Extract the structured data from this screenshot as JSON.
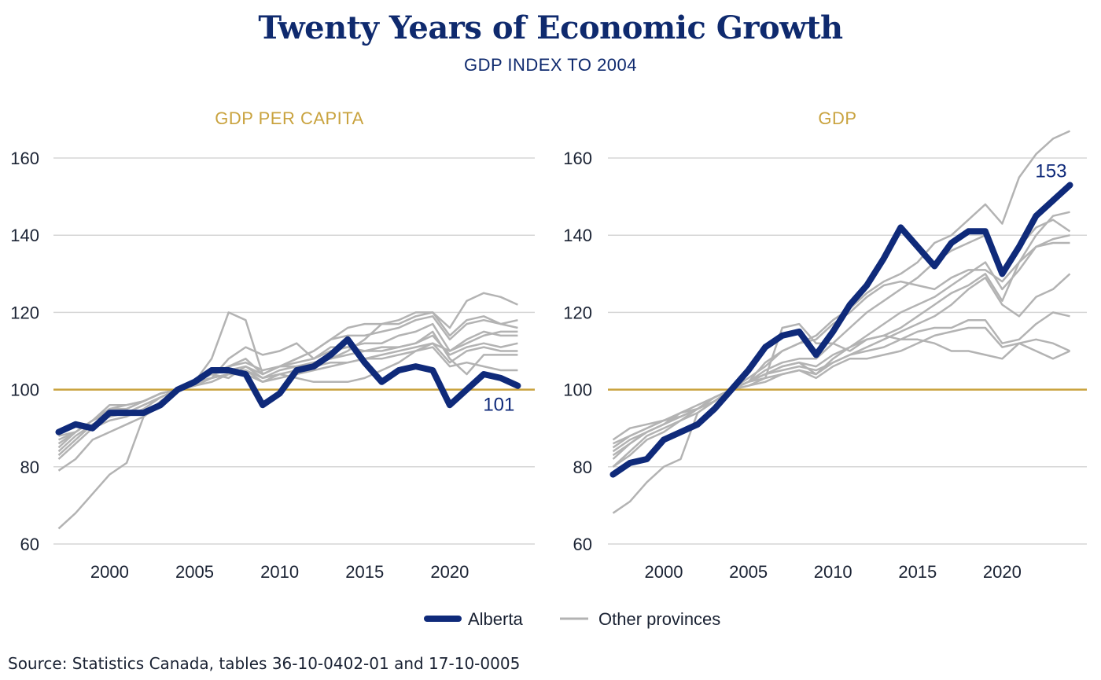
{
  "header": {
    "title": "Twenty Years of Economic Growth",
    "subtitle": "GDP INDEX TO 2004"
  },
  "legend": {
    "alberta_label": "Alberta",
    "others_label": "Other provinces"
  },
  "source": "Source: Statistics Canada, tables 36-10-0402-01 and 17-10-0005",
  "colors": {
    "alberta": "#0f2a7a",
    "others": "#b3b3b3",
    "baseline": "#c9a33f",
    "panel_title": "#c9a33f",
    "grid": "#d6d6d6",
    "text": "#1a2233"
  },
  "chart_data": [
    {
      "type": "line",
      "title": "GDP PER CAPITA",
      "x": [
        1997,
        1998,
        1999,
        2000,
        2001,
        2002,
        2003,
        2004,
        2005,
        2006,
        2007,
        2008,
        2009,
        2010,
        2011,
        2012,
        2013,
        2014,
        2015,
        2016,
        2017,
        2018,
        2019,
        2020,
        2021,
        2022,
        2023,
        2024
      ],
      "ylim": [
        60,
        160
      ],
      "yticks": [
        60,
        80,
        100,
        120,
        140,
        160
      ],
      "xticks": [
        2000,
        2005,
        2010,
        2015,
        2020
      ],
      "xlim": [
        1996.7,
        2025
      ],
      "baseline": 100,
      "highlight": {
        "name": "Alberta",
        "values": [
          89,
          91,
          90,
          94,
          94,
          94,
          96,
          100,
          102,
          105,
          105,
          104,
          96,
          99,
          105,
          106,
          109,
          113,
          107,
          102,
          105,
          106,
          105,
          96,
          100,
          104,
          103,
          101
        ],
        "end_label": "101"
      },
      "others": [
        {
          "values": [
            64,
            68,
            73,
            78,
            81,
            93,
            97,
            100,
            102,
            104,
            103,
            106,
            103,
            104,
            103,
            102,
            102,
            102,
            103,
            105,
            107,
            110,
            112,
            110,
            112,
            114,
            115,
            115
          ]
        },
        {
          "values": [
            79,
            82,
            87,
            89,
            91,
            93,
            96,
            100,
            102,
            108,
            120,
            118,
            104,
            106,
            106,
            107,
            108,
            110,
            113,
            117,
            118,
            120,
            120,
            116,
            123,
            125,
            124,
            122
          ]
        },
        {
          "values": [
            82,
            86,
            90,
            92,
            93,
            95,
            98,
            100,
            102,
            104,
            106,
            107,
            105,
            106,
            108,
            110,
            113,
            116,
            117,
            117,
            117,
            119,
            120,
            114,
            118,
            119,
            117,
            118
          ]
        },
        {
          "values": [
            83,
            87,
            91,
            93,
            94,
            96,
            98,
            100,
            102,
            104,
            106,
            108,
            104,
            106,
            108,
            110,
            113,
            114,
            114,
            115,
            116,
            118,
            119,
            113,
            117,
            118,
            117,
            116
          ]
        },
        {
          "values": [
            84,
            88,
            91,
            93,
            94,
            96,
            98,
            100,
            102,
            104,
            105,
            106,
            104,
            106,
            107,
            108,
            110,
            111,
            112,
            112,
            114,
            115,
            117,
            110,
            113,
            115,
            114,
            114
          ]
        },
        {
          "values": [
            85,
            89,
            92,
            94,
            95,
            97,
            99,
            100,
            102,
            103,
            104,
            105,
            103,
            105,
            106,
            107,
            108,
            109,
            110,
            111,
            111,
            112,
            114,
            109,
            111,
            112,
            111,
            112
          ]
        },
        {
          "values": [
            86,
            89,
            92,
            95,
            95,
            97,
            99,
            100,
            101,
            103,
            104,
            105,
            102,
            104,
            105,
            106,
            107,
            107,
            108,
            109,
            110,
            111,
            112,
            107,
            110,
            111,
            110,
            110
          ]
        },
        {
          "values": [
            87,
            89,
            92,
            95,
            96,
            97,
            99,
            100,
            101,
            102,
            104,
            104,
            102,
            103,
            104,
            105,
            106,
            107,
            108,
            108,
            109,
            110,
            111,
            106,
            107,
            106,
            105,
            105
          ]
        },
        {
          "values": [
            88,
            89,
            92,
            96,
            96,
            97,
            99,
            100,
            101,
            103,
            108,
            111,
            109,
            110,
            112,
            108,
            111,
            111,
            110,
            110,
            111,
            112,
            115,
            108,
            104,
            109,
            109,
            109
          ]
        }
      ]
    },
    {
      "type": "line",
      "title": "GDP",
      "x": [
        1997,
        1998,
        1999,
        2000,
        2001,
        2002,
        2003,
        2004,
        2005,
        2006,
        2007,
        2008,
        2009,
        2010,
        2011,
        2012,
        2013,
        2014,
        2015,
        2016,
        2017,
        2018,
        2019,
        2020,
        2021,
        2022,
        2023,
        2024
      ],
      "ylim": [
        60,
        160
      ],
      "yticks": [
        60,
        80,
        100,
        120,
        140,
        160
      ],
      "xticks": [
        2000,
        2005,
        2010,
        2015,
        2020
      ],
      "xlim": [
        1996.7,
        2025
      ],
      "baseline": 100,
      "highlight": {
        "name": "Alberta",
        "values": [
          78,
          81,
          82,
          87,
          89,
          91,
          95,
          100,
          105,
          111,
          114,
          115,
          109,
          115,
          122,
          127,
          134,
          142,
          137,
          132,
          138,
          141,
          141,
          130,
          137,
          145,
          149,
          153
        ],
        "end_label": "153"
      },
      "others": [
        {
          "values": [
            68,
            71,
            76,
            80,
            82,
            94,
            97,
            100,
            102,
            107,
            110,
            112,
            114,
            118,
            121,
            125,
            128,
            130,
            133,
            138,
            140,
            144,
            148,
            143,
            155,
            161,
            165,
            167
          ]
        },
        {
          "values": [
            80,
            84,
            88,
            90,
            92,
            95,
            98,
            100,
            103,
            106,
            110,
            112,
            113,
            117,
            120,
            124,
            127,
            128,
            127,
            126,
            129,
            131,
            131,
            128,
            133,
            140,
            145,
            146
          ]
        },
        {
          "values": [
            82,
            86,
            89,
            91,
            93,
            95,
            97,
            100,
            102,
            105,
            107,
            108,
            108,
            112,
            116,
            120,
            123,
            126,
            129,
            133,
            136,
            138,
            140,
            130,
            137,
            142,
            144,
            141
          ]
        },
        {
          "values": [
            83,
            86,
            89,
            91,
            93,
            95,
            98,
            100,
            102,
            104,
            106,
            107,
            104,
            108,
            111,
            114,
            117,
            120,
            122,
            124,
            127,
            130,
            133,
            126,
            131,
            137,
            139,
            140
          ]
        },
        {
          "values": [
            80,
            83,
            87,
            89,
            92,
            94,
            97,
            100,
            102,
            104,
            106,
            107,
            106,
            109,
            111,
            113,
            114,
            116,
            119,
            122,
            125,
            127,
            130,
            123,
            133,
            137,
            138,
            138
          ]
        },
        {
          "values": [
            84,
            87,
            89,
            91,
            94,
            95,
            98,
            100,
            102,
            104,
            105,
            106,
            105,
            107,
            109,
            111,
            113,
            115,
            117,
            119,
            122,
            126,
            129,
            122,
            119,
            124,
            126,
            130
          ]
        },
        {
          "values": [
            87,
            90,
            91,
            92,
            94,
            96,
            98,
            100,
            102,
            103,
            104,
            105,
            104,
            107,
            109,
            110,
            111,
            113,
            115,
            116,
            116,
            118,
            118,
            112,
            113,
            117,
            120,
            119
          ]
        },
        {
          "values": [
            85,
            88,
            90,
            92,
            93,
            95,
            97,
            100,
            101,
            102,
            104,
            105,
            103,
            106,
            108,
            108,
            109,
            110,
            112,
            114,
            115,
            116,
            116,
            111,
            112,
            113,
            112,
            110
          ]
        },
        {
          "values": [
            86,
            88,
            90,
            92,
            93,
            95,
            98,
            100,
            101,
            103,
            116,
            117,
            112,
            112,
            110,
            113,
            114,
            113,
            113,
            112,
            110,
            110,
            109,
            108,
            112,
            110,
            108,
            110
          ]
        }
      ]
    }
  ]
}
